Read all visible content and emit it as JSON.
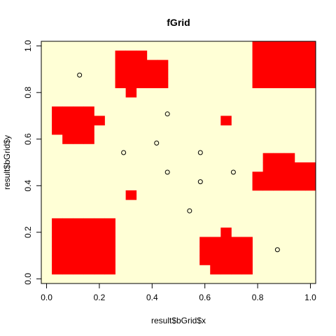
{
  "chart_data": {
    "type": "heatmap",
    "title": "fGrid",
    "xlabel": "result$bGrid$x",
    "ylabel": "result$bGrid$y",
    "xlim": [
      0,
      1
    ],
    "ylim": [
      0,
      1
    ],
    "grid": false,
    "x_ticks": [
      {
        "value": 0.0,
        "label": "0.0"
      },
      {
        "value": 0.2,
        "label": "0.2"
      },
      {
        "value": 0.4,
        "label": "0.4"
      },
      {
        "value": 0.6,
        "label": "0.6"
      },
      {
        "value": 0.8,
        "label": "0.8"
      },
      {
        "value": 1.0,
        "label": "1.0"
      }
    ],
    "y_ticks": [
      {
        "value": 0.0,
        "label": "0.0"
      },
      {
        "value": 0.2,
        "label": "0.2"
      },
      {
        "value": 0.4,
        "label": "0.4"
      },
      {
        "value": 0.6,
        "label": "0.6"
      },
      {
        "value": 0.8,
        "label": "0.8"
      },
      {
        "value": 1.0,
        "label": "1.0"
      }
    ],
    "grid_cells": {
      "n": 26,
      "cell_size": 0.04,
      "x0": -0.02,
      "y0": -0.02
    },
    "colors": {
      "background_cell": "#ffffd6",
      "filled_cell": "#ff0000",
      "point": "#000000"
    },
    "filled_cells": [
      [
        1,
        1
      ],
      [
        2,
        1
      ],
      [
        3,
        1
      ],
      [
        4,
        1
      ],
      [
        5,
        1
      ],
      [
        6,
        1
      ],
      [
        1,
        2
      ],
      [
        2,
        2
      ],
      [
        3,
        2
      ],
      [
        4,
        2
      ],
      [
        5,
        2
      ],
      [
        6,
        2
      ],
      [
        1,
        3
      ],
      [
        2,
        3
      ],
      [
        3,
        3
      ],
      [
        4,
        3
      ],
      [
        5,
        3
      ],
      [
        6,
        3
      ],
      [
        1,
        4
      ],
      [
        2,
        4
      ],
      [
        3,
        4
      ],
      [
        4,
        4
      ],
      [
        5,
        4
      ],
      [
        6,
        4
      ],
      [
        1,
        5
      ],
      [
        2,
        5
      ],
      [
        3,
        5
      ],
      [
        4,
        5
      ],
      [
        5,
        5
      ],
      [
        6,
        5
      ],
      [
        1,
        6
      ],
      [
        2,
        6
      ],
      [
        3,
        6
      ],
      [
        4,
        6
      ],
      [
        5,
        6
      ],
      [
        6,
        6
      ],
      [
        16,
        1
      ],
      [
        17,
        1
      ],
      [
        18,
        1
      ],
      [
        19,
        1
      ],
      [
        15,
        2
      ],
      [
        16,
        2
      ],
      [
        17,
        2
      ],
      [
        18,
        2
      ],
      [
        19,
        2
      ],
      [
        15,
        3
      ],
      [
        16,
        3
      ],
      [
        17,
        3
      ],
      [
        18,
        3
      ],
      [
        19,
        3
      ],
      [
        15,
        4
      ],
      [
        16,
        4
      ],
      [
        17,
        4
      ],
      [
        18,
        4
      ],
      [
        19,
        4
      ],
      [
        17,
        5
      ],
      [
        8,
        9
      ],
      [
        20,
        10
      ],
      [
        21,
        10
      ],
      [
        22,
        10
      ],
      [
        23,
        10
      ],
      [
        24,
        10
      ],
      [
        25,
        10
      ],
      [
        20,
        11
      ],
      [
        21,
        11
      ],
      [
        22,
        11
      ],
      [
        23,
        11
      ],
      [
        24,
        11
      ],
      [
        25,
        11
      ],
      [
        21,
        12
      ],
      [
        22,
        12
      ],
      [
        23,
        12
      ],
      [
        24,
        12
      ],
      [
        25,
        12
      ],
      [
        21,
        13
      ],
      [
        22,
        13
      ],
      [
        23,
        13
      ],
      [
        17,
        17
      ],
      [
        2,
        15
      ],
      [
        3,
        15
      ],
      [
        4,
        15
      ],
      [
        1,
        16
      ],
      [
        2,
        16
      ],
      [
        3,
        16
      ],
      [
        4,
        16
      ],
      [
        1,
        17
      ],
      [
        2,
        17
      ],
      [
        3,
        17
      ],
      [
        4,
        17
      ],
      [
        5,
        17
      ],
      [
        1,
        18
      ],
      [
        2,
        18
      ],
      [
        3,
        18
      ],
      [
        4,
        18
      ],
      [
        8,
        20
      ],
      [
        7,
        21
      ],
      [
        8,
        21
      ],
      [
        9,
        21
      ],
      [
        10,
        21
      ],
      [
        11,
        21
      ],
      [
        7,
        22
      ],
      [
        8,
        22
      ],
      [
        9,
        22
      ],
      [
        10,
        22
      ],
      [
        11,
        22
      ],
      [
        7,
        23
      ],
      [
        8,
        23
      ],
      [
        9,
        23
      ],
      [
        10,
        23
      ],
      [
        11,
        23
      ],
      [
        7,
        24
      ],
      [
        8,
        24
      ],
      [
        9,
        24
      ],
      [
        20,
        21
      ],
      [
        21,
        21
      ],
      [
        22,
        21
      ],
      [
        23,
        21
      ],
      [
        24,
        21
      ],
      [
        25,
        21
      ],
      [
        20,
        22
      ],
      [
        21,
        22
      ],
      [
        22,
        22
      ],
      [
        23,
        22
      ],
      [
        24,
        22
      ],
      [
        25,
        22
      ],
      [
        20,
        23
      ],
      [
        21,
        23
      ],
      [
        22,
        23
      ],
      [
        23,
        23
      ],
      [
        24,
        23
      ],
      [
        25,
        23
      ],
      [
        20,
        24
      ],
      [
        21,
        24
      ],
      [
        22,
        24
      ],
      [
        23,
        24
      ],
      [
        24,
        24
      ],
      [
        25,
        24
      ],
      [
        20,
        25
      ],
      [
        21,
        25
      ],
      [
        22,
        25
      ],
      [
        23,
        25
      ],
      [
        24,
        25
      ],
      [
        25,
        25
      ]
    ],
    "points": [
      {
        "x": 0.125,
        "y": 0.875
      },
      {
        "x": 0.458,
        "y": 0.708
      },
      {
        "x": 0.417,
        "y": 0.583
      },
      {
        "x": 0.292,
        "y": 0.542
      },
      {
        "x": 0.583,
        "y": 0.542
      },
      {
        "x": 0.458,
        "y": 0.458
      },
      {
        "x": 0.708,
        "y": 0.458
      },
      {
        "x": 0.583,
        "y": 0.417
      },
      {
        "x": 0.542,
        "y": 0.292
      },
      {
        "x": 0.875,
        "y": 0.125
      }
    ]
  }
}
